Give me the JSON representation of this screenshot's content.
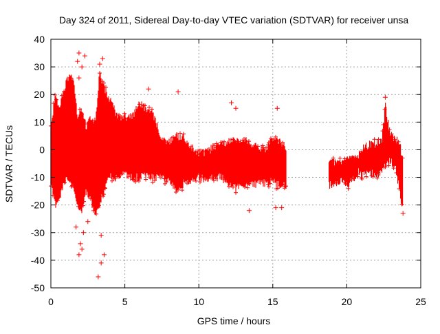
{
  "colors": {
    "series": "#ff0000",
    "grid": "#a0a0a0",
    "axis": "#000000",
    "background": "#ffffff"
  },
  "chart_data": {
    "type": "scatter",
    "title": "Day 324 of 2011, Sidereal Day-to-day VTEC variation (SDTVAR) for receiver unsa",
    "xlabel": "GPS time / hours",
    "ylabel": "SDTVAR / TECUs",
    "xlim": [
      0,
      25
    ],
    "ylim": [
      -50,
      40
    ],
    "xticks": [
      0,
      5,
      10,
      15,
      20,
      25
    ],
    "yticks": [
      -50,
      -40,
      -30,
      -20,
      -10,
      0,
      10,
      20,
      30,
      40
    ],
    "grid": true,
    "marker": "plus",
    "series": [
      {
        "name": "SDTVAR",
        "color": "#ff0000",
        "envelope": [
          {
            "x": 0.0,
            "ymin": -12,
            "ymax": 8
          },
          {
            "x": 0.3,
            "ymin": -20,
            "ymax": 20
          },
          {
            "x": 0.6,
            "ymin": -18,
            "ymax": 15
          },
          {
            "x": 0.9,
            "ymin": -12,
            "ymax": 22
          },
          {
            "x": 1.2,
            "ymin": -10,
            "ymax": 27
          },
          {
            "x": 1.5,
            "ymin": -14,
            "ymax": 26
          },
          {
            "x": 1.8,
            "ymin": -20,
            "ymax": 12
          },
          {
            "x": 2.1,
            "ymin": -22,
            "ymax": 14
          },
          {
            "x": 2.4,
            "ymin": -15,
            "ymax": 8
          },
          {
            "x": 2.7,
            "ymin": -18,
            "ymax": 12
          },
          {
            "x": 3.0,
            "ymin": -24,
            "ymax": 10
          },
          {
            "x": 3.3,
            "ymin": -20,
            "ymax": 28
          },
          {
            "x": 3.6,
            "ymin": -14,
            "ymax": 22
          },
          {
            "x": 4.0,
            "ymin": -10,
            "ymax": 18
          },
          {
            "x": 4.5,
            "ymin": -10,
            "ymax": 12
          },
          {
            "x": 5.0,
            "ymin": -9,
            "ymax": 12
          },
          {
            "x": 5.5,
            "ymin": -10,
            "ymax": 12
          },
          {
            "x": 6.0,
            "ymin": -10,
            "ymax": 17
          },
          {
            "x": 6.5,
            "ymin": -9,
            "ymax": 14
          },
          {
            "x": 7.0,
            "ymin": -10,
            "ymax": 12
          },
          {
            "x": 7.5,
            "ymin": -10,
            "ymax": 4
          },
          {
            "x": 8.0,
            "ymin": -11,
            "ymax": 3
          },
          {
            "x": 8.5,
            "ymin": -15,
            "ymax": 5
          },
          {
            "x": 9.0,
            "ymin": -12,
            "ymax": 4
          },
          {
            "x": 9.5,
            "ymin": -11,
            "ymax": 1
          },
          {
            "x": 10.0,
            "ymin": -10,
            "ymax": -1
          },
          {
            "x": 10.5,
            "ymin": -11,
            "ymax": -1
          },
          {
            "x": 11.0,
            "ymin": -10,
            "ymax": 1
          },
          {
            "x": 11.5,
            "ymin": -10,
            "ymax": 2
          },
          {
            "x": 12.0,
            "ymin": -12,
            "ymax": 3
          },
          {
            "x": 12.5,
            "ymin": -14,
            "ymax": 4
          },
          {
            "x": 13.0,
            "ymin": -12,
            "ymax": 4
          },
          {
            "x": 13.5,
            "ymin": -13,
            "ymax": 2
          },
          {
            "x": 14.0,
            "ymin": -12,
            "ymax": 1
          },
          {
            "x": 14.5,
            "ymin": -12,
            "ymax": 0
          },
          {
            "x": 15.0,
            "ymin": -11,
            "ymax": 4
          },
          {
            "x": 15.5,
            "ymin": -13,
            "ymax": 3
          },
          {
            "x": 15.9,
            "ymin": -12,
            "ymax": 1
          }
        ],
        "segment2": [
          {
            "x": 18.8,
            "ymin": -13,
            "ymax": -4
          },
          {
            "x": 19.2,
            "ymin": -12,
            "ymax": -5
          },
          {
            "x": 19.6,
            "ymin": -11,
            "ymax": -4
          },
          {
            "x": 20.0,
            "ymin": -13,
            "ymax": -3
          },
          {
            "x": 20.4,
            "ymin": -11,
            "ymax": -3
          },
          {
            "x": 20.8,
            "ymin": -8,
            "ymax": -2
          },
          {
            "x": 21.2,
            "ymin": -9,
            "ymax": 1
          },
          {
            "x": 21.6,
            "ymin": -8,
            "ymax": 2
          },
          {
            "x": 22.0,
            "ymin": -10,
            "ymax": 2
          },
          {
            "x": 22.4,
            "ymin": -7,
            "ymax": 4
          },
          {
            "x": 22.6,
            "ymin": -5,
            "ymax": 16
          },
          {
            "x": 22.9,
            "ymin": -4,
            "ymax": 6
          },
          {
            "x": 23.3,
            "ymin": -6,
            "ymax": 4
          },
          {
            "x": 23.6,
            "ymin": -16,
            "ymax": 2
          },
          {
            "x": 23.8,
            "ymin": -22,
            "ymax": -5
          }
        ],
        "outliers": [
          {
            "x": 1.9,
            "y": 35
          },
          {
            "x": 2.3,
            "y": 34
          },
          {
            "x": 1.8,
            "y": 32
          },
          {
            "x": 2.1,
            "y": 30
          },
          {
            "x": 3.5,
            "y": 33
          },
          {
            "x": 3.3,
            "y": 31
          },
          {
            "x": 1.9,
            "y": 26
          },
          {
            "x": 2.0,
            "y": -34
          },
          {
            "x": 2.1,
            "y": -36
          },
          {
            "x": 1.9,
            "y": -38
          },
          {
            "x": 2.2,
            "y": -30
          },
          {
            "x": 3.2,
            "y": -46
          },
          {
            "x": 3.4,
            "y": -41
          },
          {
            "x": 3.6,
            "y": -38
          },
          {
            "x": 3.4,
            "y": -31
          },
          {
            "x": 1.7,
            "y": -28
          },
          {
            "x": 2.5,
            "y": -26
          },
          {
            "x": 6.6,
            "y": 22
          },
          {
            "x": 8.6,
            "y": 21
          },
          {
            "x": 12.2,
            "y": 17
          },
          {
            "x": 12.5,
            "y": 15
          },
          {
            "x": 15.3,
            "y": 15
          },
          {
            "x": 13.4,
            "y": -22
          },
          {
            "x": 15.2,
            "y": -21
          },
          {
            "x": 15.6,
            "y": -21
          },
          {
            "x": 22.6,
            "y": 19
          },
          {
            "x": 23.8,
            "y": -23
          }
        ]
      }
    ]
  }
}
